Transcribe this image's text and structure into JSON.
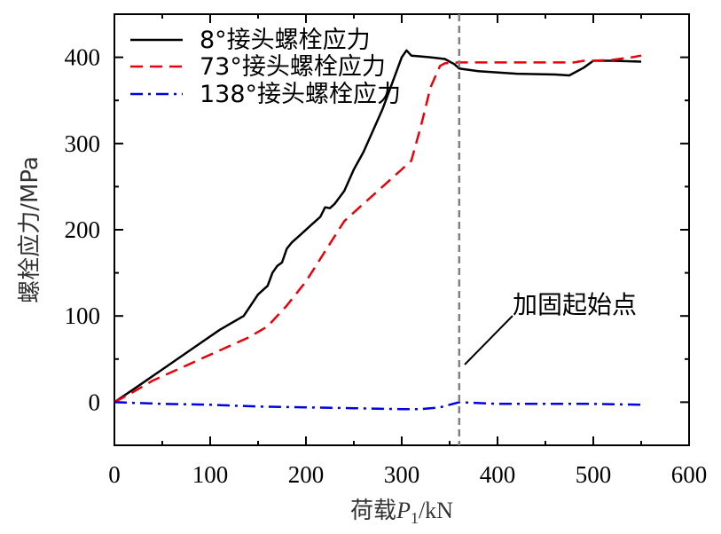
{
  "chart_data": {
    "type": "line",
    "title": "",
    "xlabel_prefix": "荷载",
    "xlabel_var": "P",
    "xlabel_sub": "1",
    "xlabel_suffix": "/kN",
    "ylabel": "螺栓应力/MPa",
    "xlim": [
      0,
      600
    ],
    "ylim": [
      -50,
      450
    ],
    "xticks": [
      0,
      100,
      200,
      300,
      400,
      500,
      600
    ],
    "yticks": [
      0,
      100,
      200,
      300,
      400
    ],
    "grid": false,
    "legend_position": "top-left",
    "series": [
      {
        "name": "8°接头螺栓应力",
        "color": "#000000",
        "style": "solid",
        "x": [
          0,
          20,
          50,
          80,
          110,
          135,
          150,
          160,
          165,
          170,
          175,
          180,
          185,
          195,
          205,
          215,
          220,
          225,
          230,
          240,
          250,
          260,
          270,
          280,
          290,
          300,
          305,
          310,
          320,
          330,
          345,
          355,
          360,
          380,
          420,
          460,
          475,
          490,
          500,
          520,
          550
        ],
        "y": [
          0,
          15,
          38,
          61,
          84,
          100,
          125,
          135,
          150,
          158,
          162,
          178,
          185,
          195,
          205,
          215,
          226,
          225,
          230,
          245,
          270,
          290,
          315,
          340,
          370,
          400,
          408,
          402,
          401,
          400,
          398,
          392,
          387,
          384,
          381,
          380,
          379,
          388,
          396,
          396,
          395
        ]
      },
      {
        "name": "73°接头螺栓应力",
        "color": "#e8000b",
        "style": "dashed",
        "x": [
          0,
          20,
          40,
          60,
          80,
          100,
          120,
          140,
          160,
          180,
          200,
          220,
          240,
          260,
          280,
          300,
          310,
          320,
          330,
          340,
          345,
          360,
          400,
          440,
          480,
          490,
          500,
          520,
          540,
          550
        ],
        "y": [
          0,
          12,
          25,
          35,
          45,
          55,
          65,
          75,
          88,
          112,
          140,
          175,
          210,
          230,
          250,
          270,
          280,
          320,
          365,
          390,
          393,
          394,
          394,
          394,
          394,
          396,
          396,
          397,
          400,
          402
        ]
      },
      {
        "name": "138°接头螺栓应力",
        "color": "#0000e0",
        "style": "dashdot",
        "x": [
          0,
          50,
          100,
          150,
          200,
          250,
          300,
          320,
          340,
          360,
          400,
          450,
          500,
          550
        ],
        "y": [
          0,
          -2,
          -3,
          -5,
          -6,
          -7,
          -8,
          -8,
          -6,
          0,
          -2,
          -2,
          -2,
          -3
        ]
      }
    ],
    "annotations": [
      {
        "text": "加固起始点",
        "x": 360
      }
    ]
  }
}
